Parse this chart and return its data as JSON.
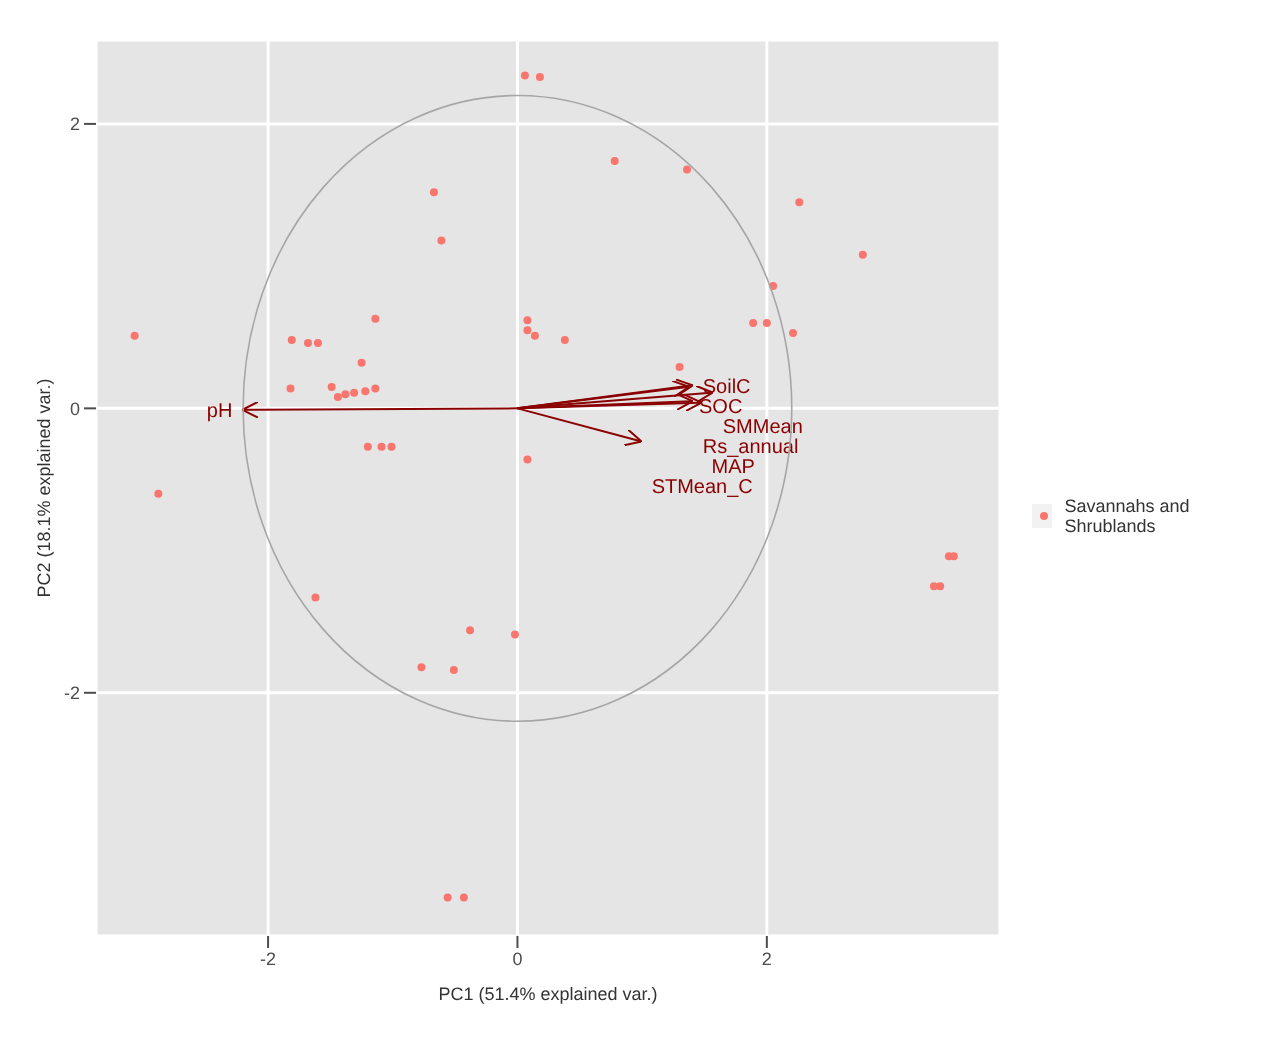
{
  "chart_data": {
    "type": "scatter",
    "xlabel": "PC1 (51.4% explained var.)",
    "ylabel": "PC2 (18.1% explained var.)",
    "xlim": [
      -3.38,
      3.87
    ],
    "ylim": [
      -3.71,
      2.59
    ],
    "xticks": [
      -2,
      0,
      2
    ],
    "yticks": [
      -2,
      0,
      2
    ],
    "grid": true,
    "legend": "right",
    "marker": "circle",
    "series": [
      {
        "type": "scatter",
        "name": "Savannahs and Shrublands",
        "color": "#f8766d",
        "x": [
          0.06,
          0.18,
          0.78,
          -0.67,
          -0.61,
          -3.07,
          -1.14,
          -1.81,
          -1.68,
          -1.6,
          0.08,
          0.08,
          0.14,
          0.38,
          -1.25,
          -1.82,
          -1.49,
          -1.44,
          -1.38,
          -1.31,
          -1.22,
          -1.14,
          -1.2,
          -1.09,
          -1.01,
          -2.88,
          0.08,
          -1.62,
          -0.38,
          -0.02,
          -0.77,
          -0.51,
          -0.56,
          -0.43,
          1.36,
          2.26,
          2.77,
          2.05,
          1.89,
          2.0,
          2.21,
          1.3,
          3.5,
          3.46,
          3.39,
          3.34
        ],
        "values": [
          2.34,
          2.33,
          1.74,
          1.52,
          1.18,
          0.51,
          0.63,
          0.48,
          0.46,
          0.46,
          0.62,
          0.55,
          0.51,
          0.48,
          0.32,
          0.14,
          0.15,
          0.08,
          0.1,
          0.11,
          0.12,
          0.14,
          -0.27,
          -0.27,
          -0.27,
          -0.6,
          -0.36,
          -1.33,
          -1.56,
          -1.59,
          -1.82,
          -1.84,
          -3.44,
          -3.44,
          1.68,
          1.45,
          1.08,
          0.86,
          0.6,
          0.6,
          0.53,
          0.29,
          -1.04,
          -1.04,
          -1.25,
          -1.25
        ]
      },
      {
        "type": "line",
        "marker": "none",
        "name": "pH",
        "color": "#8b0000",
        "x": [
          0,
          -2.19
        ],
        "values": [
          0,
          -0.01
        ]
      },
      {
        "type": "line",
        "marker": "none",
        "name": "SoilC",
        "color": "#8b0000",
        "x": [
          0,
          1.39
        ],
        "values": [
          0,
          0.16
        ]
      },
      {
        "type": "line",
        "marker": "none",
        "name": "SOC",
        "color": "#8b0000",
        "x": [
          0,
          1.36
        ],
        "values": [
          0,
          0.15
        ]
      },
      {
        "type": "line",
        "marker": "none",
        "name": "SMMean",
        "color": "#8b0000",
        "x": [
          0,
          1.55
        ],
        "values": [
          0,
          0.11
        ]
      },
      {
        "type": "line",
        "marker": "none",
        "name": "Rs_annual",
        "color": "#8b0000",
        "x": [
          0,
          1.39
        ],
        "values": [
          0,
          0.05
        ]
      },
      {
        "type": "line",
        "marker": "none",
        "name": "MAP",
        "color": "#8b0000",
        "x": [
          0,
          1.46
        ],
        "values": [
          0,
          0.04
        ]
      },
      {
        "type": "line",
        "marker": "none",
        "name": "STMean_C",
        "color": "#8b0000",
        "x": [
          0,
          0.98
        ],
        "values": [
          0,
          -0.23
        ]
      }
    ]
  }
}
